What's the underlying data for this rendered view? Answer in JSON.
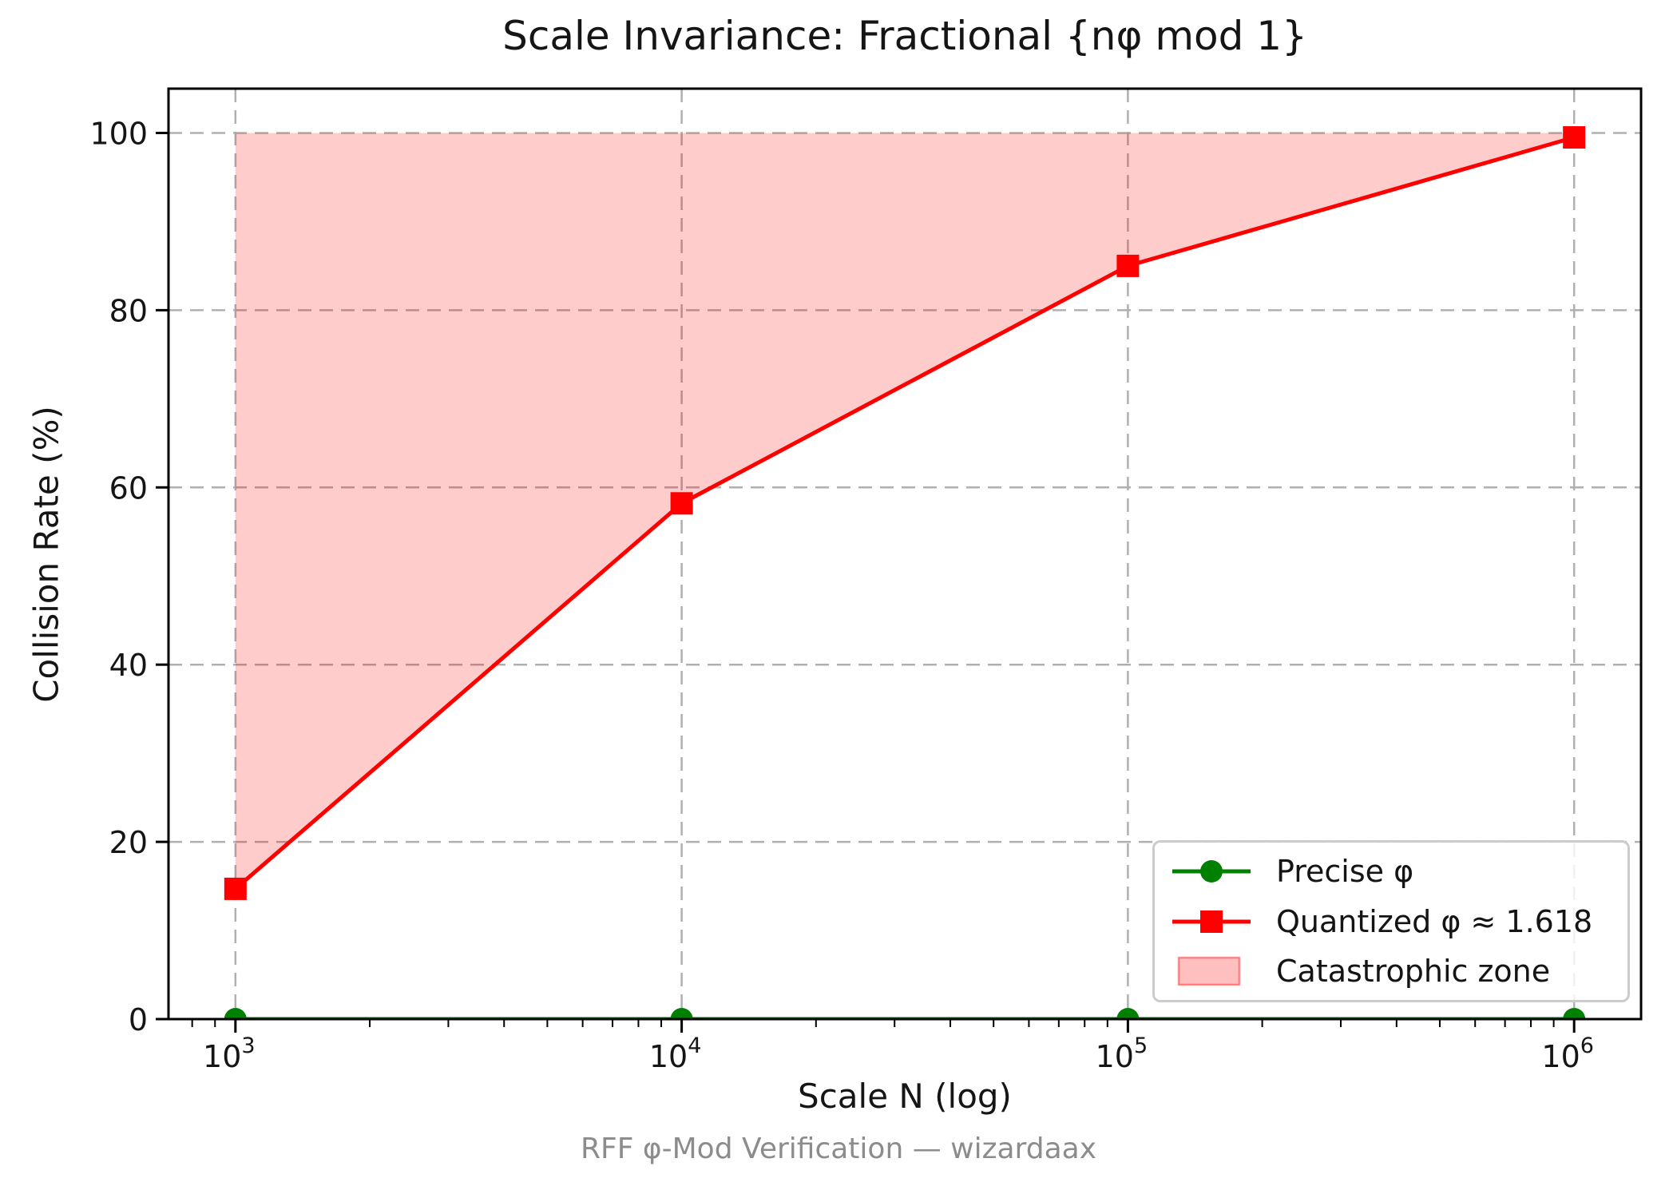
{
  "title": "Scale Invariance: Fractional {nφ mod 1}",
  "footer": "RFF φ-Mod Verification — wizardaax",
  "colors": {
    "precise_series": "#008000",
    "quantized_series": "#ff0000",
    "zone_fill": "#ff0000",
    "zone_fill_opacity": 0.2,
    "zone_edge": "rgba(255,0,0,0.4)",
    "grid": "#b0b0b0",
    "spine": "#000000",
    "tick_label": "#151515",
    "muted_text": "#8c8c8c"
  },
  "chart_data": {
    "type": "line",
    "title": "Scale Invariance: Fractional {nφ mod 1}",
    "xlabel": "Scale N (log)",
    "ylabel": "Collision Rate (%)",
    "x_scale": "log",
    "x": [
      1000,
      10000,
      100000,
      1000000
    ],
    "x_tick_exponents": [
      3,
      4,
      5,
      6
    ],
    "xlim_log": [
      2.85,
      6.15
    ],
    "ylim": [
      0,
      105
    ],
    "y_ticks": [
      0,
      20,
      40,
      60,
      80,
      100
    ],
    "grid": {
      "style": "dashed",
      "on": true
    },
    "series": [
      {
        "name": "Precise φ",
        "marker": "circle",
        "color": "#008000",
        "values": [
          0.0,
          0.0,
          0.0,
          0.0
        ]
      },
      {
        "name": "Quantized φ ≈ 1.618",
        "marker": "square",
        "color": "#ff0000",
        "values": [
          14.7,
          58.2,
          85.0,
          99.5
        ]
      }
    ],
    "zone": {
      "label": "Catastrophic zone",
      "description": "filled region between quantized series and 100%",
      "upper": 100,
      "x_start": 1000,
      "x_end": 1000000
    },
    "legend_position": "lower right"
  }
}
